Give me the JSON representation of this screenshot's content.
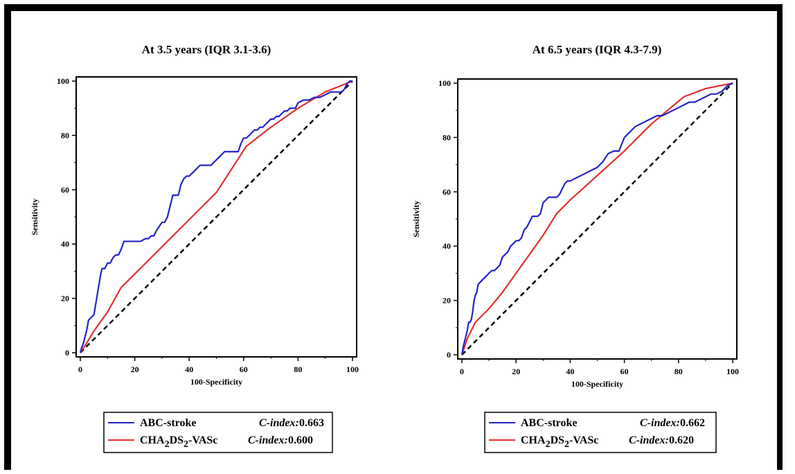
{
  "colors": {
    "abc": "#2323c8",
    "cha": "#e03030",
    "ref": "#000000"
  },
  "chart_data": [
    {
      "type": "line",
      "title": "At 3.5 years (IQR 3.1-3.6)",
      "xlabel": "100-Specificity",
      "ylabel": "Sensitivity",
      "xlim": [
        0,
        100
      ],
      "ylim": [
        0,
        100
      ],
      "xticks": [
        "0",
        "20",
        "40",
        "60",
        "80",
        "100"
      ],
      "yticks": [
        "0",
        "20",
        "40",
        "60",
        "80",
        "100"
      ],
      "series": [
        {
          "name": "ABC-stroke",
          "label": "ABC-stroke",
          "cindex_label": "C-index:",
          "cindex": "0.663",
          "x": [
            0,
            0.5,
            1,
            1.5,
            2,
            2.5,
            3,
            4,
            5,
            5.5,
            6,
            6.5,
            7,
            7.5,
            8,
            9,
            10,
            11,
            12,
            13,
            14,
            15,
            16,
            17,
            18,
            20,
            22,
            24,
            25,
            26,
            27,
            28,
            30,
            31,
            32,
            33,
            34,
            35,
            36,
            37,
            38,
            39,
            40,
            41,
            42,
            43,
            44,
            45,
            46,
            47,
            48,
            49,
            50,
            51,
            52,
            53,
            54,
            55,
            56,
            57,
            58,
            59,
            60,
            61,
            62,
            63,
            64,
            65,
            66,
            67,
            68,
            69,
            70,
            71,
            72,
            73,
            74,
            75,
            76,
            77,
            78,
            79,
            80,
            82,
            84,
            86,
            88,
            90,
            92,
            94,
            96,
            97,
            98,
            99,
            100
          ],
          "y": [
            0,
            2,
            3,
            5,
            7,
            9,
            12,
            13,
            14,
            17,
            20,
            23,
            26,
            29,
            31,
            31,
            33,
            33,
            35,
            36,
            36,
            38,
            41,
            41,
            41,
            41,
            41,
            42,
            42,
            43,
            43,
            45,
            48,
            48,
            50,
            54,
            58,
            58,
            58,
            62,
            64,
            65,
            65,
            66,
            67,
            68,
            69,
            69,
            69,
            69,
            69,
            70,
            71,
            72,
            73,
            74,
            74,
            74,
            74,
            74,
            74,
            77,
            79,
            79,
            80,
            81,
            82,
            82,
            83,
            83,
            84,
            85,
            86,
            86,
            87,
            87,
            88,
            89,
            89,
            90,
            90,
            90,
            92,
            93,
            93,
            94,
            94,
            95,
            96,
            96,
            96,
            97,
            99,
            100,
            100
          ]
        },
        {
          "name": "CHA2DS2-VASc",
          "label_main": "CHA",
          "label_sub1": "2",
          "label_mid": "DS",
          "label_sub2": "2",
          "label_tail": "-VASc",
          "cindex_label": "C-index:",
          "cindex": "0.600",
          "x": [
            0,
            2,
            5,
            10,
            15,
            20,
            25,
            30,
            40,
            50,
            61,
            70,
            80,
            90,
            100
          ],
          "y": [
            0,
            3,
            8,
            15,
            24,
            29,
            34,
            39,
            49,
            59,
            76,
            83,
            90,
            96,
            100
          ]
        },
        {
          "name": "reference",
          "x": [
            0,
            100
          ],
          "y": [
            0,
            100
          ]
        }
      ]
    },
    {
      "type": "line",
      "title": "At 6.5 years (IQR 4.3-7.9)",
      "xlabel": "100-Specificity",
      "ylabel": "Sensitivity",
      "xlim": [
        0,
        100
      ],
      "ylim": [
        0,
        100
      ],
      "xticks": [
        "0",
        "20",
        "40",
        "60",
        "80",
        "100"
      ],
      "yticks": [
        "0",
        "20",
        "40",
        "60",
        "80",
        "100"
      ],
      "series": [
        {
          "name": "ABC-stroke",
          "label": "ABC-stroke",
          "cindex_label": "C-index:",
          "cindex": "0.662",
          "x": [
            0,
            0.5,
            1,
            1.5,
            2,
            2.5,
            3,
            3.5,
            4,
            4.5,
            5,
            5.5,
            6,
            7,
            8,
            9,
            10,
            11,
            12,
            13,
            14,
            15,
            16,
            17,
            18,
            19,
            20,
            21,
            22,
            23,
            24,
            25,
            26,
            27,
            28,
            29,
            30,
            31,
            32,
            33,
            34,
            35,
            36,
            37,
            38,
            39,
            40,
            42,
            44,
            46,
            48,
            50,
            52,
            54,
            56,
            58,
            60,
            62,
            64,
            66,
            68,
            70,
            72,
            74,
            76,
            78,
            80,
            82,
            84,
            86,
            88,
            90,
            92,
            94,
            96,
            98,
            100
          ],
          "y": [
            0,
            3,
            5,
            7,
            9,
            12,
            12,
            13,
            16,
            20,
            22,
            23,
            26,
            27,
            28,
            29,
            30,
            31,
            31,
            32,
            33,
            36,
            37,
            38,
            40,
            41,
            42,
            42,
            43,
            46,
            47,
            49,
            51,
            51,
            51,
            52,
            56,
            57,
            58,
            58,
            58,
            58,
            59,
            61,
            63,
            64,
            64,
            65,
            66,
            67,
            68,
            69,
            71,
            74,
            75,
            75,
            80,
            82,
            84,
            85,
            86,
            87,
            88,
            88,
            89,
            90,
            91,
            92,
            93,
            93,
            94,
            95,
            96,
            96,
            97,
            99,
            100
          ]
        },
        {
          "name": "CHA2DS2-VASc",
          "label_main": "CHA",
          "label_sub1": "2",
          "label_mid": "DS",
          "label_sub2": "2",
          "label_tail": "-VASc",
          "cindex_label": "C-index:",
          "cindex": "0.620",
          "x": [
            0,
            2,
            5,
            10,
            15,
            20,
            25,
            30,
            35,
            40,
            50,
            60,
            70,
            82,
            90,
            100
          ],
          "y": [
            0,
            6,
            12,
            17,
            23,
            30,
            37,
            44,
            52,
            57,
            66,
            75,
            85,
            95,
            98,
            100
          ]
        },
        {
          "name": "reference",
          "x": [
            0,
            100
          ],
          "y": [
            0,
            100
          ]
        }
      ]
    }
  ]
}
